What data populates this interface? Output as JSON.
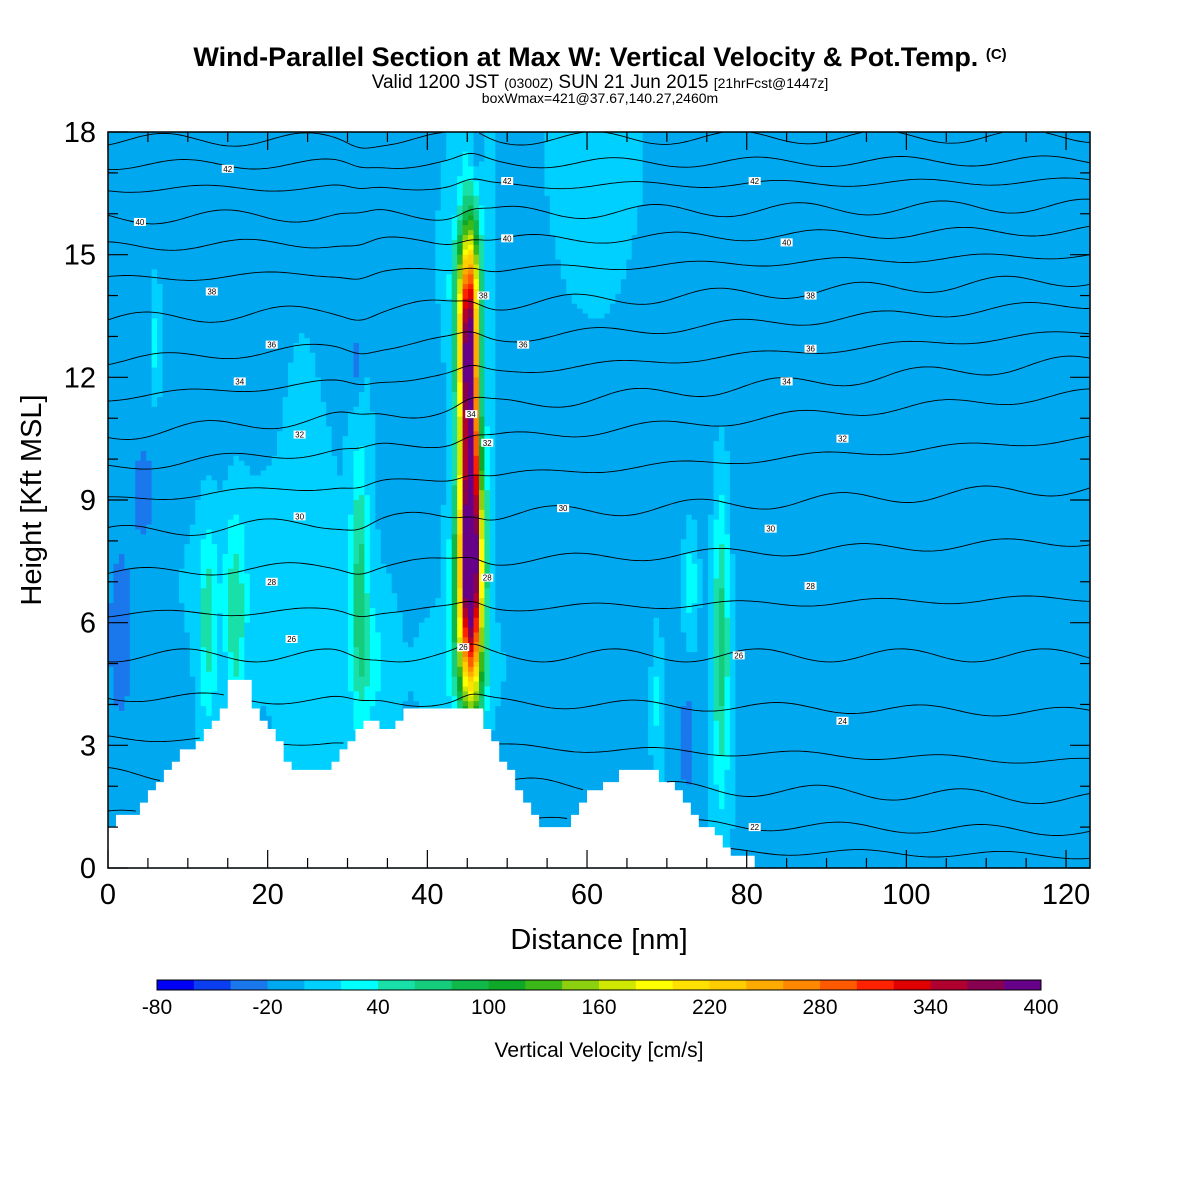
{
  "title": {
    "main": "Wind-Parallel Section at Max W: Vertical Velocity & Pot.Temp.",
    "copyright": "(C)",
    "valid_prefix": "Valid 1200 JST",
    "utc": "(0300Z)",
    "valid_date": "SUN 21 Jun 2015",
    "forecast": "[21hrFcst@1447z]",
    "boxinfo": "boxWmax=421@37.67,140.27,2460m"
  },
  "chart_data": {
    "type": "heatmap",
    "xlabel": "Distance [nm]",
    "ylabel": "Height [Kft MSL]",
    "xlim": [
      0,
      123
    ],
    "ylim": [
      0,
      18
    ],
    "x_ticks": [
      0,
      20,
      40,
      60,
      80,
      100,
      120
    ],
    "y_ticks": [
      0,
      3,
      6,
      9,
      12,
      15,
      18
    ],
    "colorbar": {
      "label": "Vertical Velocity [cm/s]",
      "range": [
        -80,
        400
      ],
      "step": 20,
      "tick_labels": [
        "-80",
        "-20",
        "40",
        "100",
        "160",
        "220",
        "280",
        "340",
        "400"
      ],
      "colors": [
        "#0000f5",
        "#0a3ef0",
        "#1b78ec",
        "#00a8f0",
        "#00d0ff",
        "#00ffff",
        "#18e0a8",
        "#14cc7c",
        "#10b84a",
        "#10a828",
        "#3cb818",
        "#8cd010",
        "#d0e800",
        "#ffff00",
        "#ffe000",
        "#ffcc00",
        "#ffaa00",
        "#ff8800",
        "#ff5a00",
        "#ff2200",
        "#e00000",
        "#b00030",
        "#880050",
        "#660088"
      ]
    },
    "background_w": 0,
    "terrain_profile_kft": {
      "x": [
        0,
        1,
        4,
        5,
        6,
        7,
        8,
        9,
        11,
        12,
        13,
        14,
        15,
        16,
        17,
        18,
        19,
        20,
        21,
        22,
        23,
        27,
        28,
        29,
        30,
        31,
        32,
        33,
        34,
        35,
        36,
        37,
        40,
        46,
        47,
        48,
        49,
        50,
        51,
        52,
        53,
        54,
        55,
        56,
        58,
        59,
        60,
        61,
        62,
        63,
        64,
        68,
        69,
        70,
        71,
        72,
        73,
        74,
        75,
        76,
        77,
        78,
        79,
        80,
        81,
        123
      ],
      "y": [
        1.0,
        1.3,
        1.6,
        1.9,
        2.1,
        2.4,
        2.6,
        2.9,
        3.1,
        3.4,
        3.6,
        3.9,
        4.6,
        4.6,
        4.6,
        3.9,
        3.6,
        3.4,
        3.1,
        2.6,
        2.4,
        2.4,
        2.6,
        2.9,
        3.1,
        3.4,
        3.6,
        3.6,
        3.4,
        3.4,
        3.6,
        3.9,
        3.9,
        3.9,
        3.4,
        3.1,
        2.6,
        2.4,
        1.9,
        1.6,
        1.3,
        1.0,
        1.0,
        1.0,
        1.3,
        1.6,
        1.9,
        1.9,
        2.1,
        2.1,
        2.4,
        2.4,
        2.1,
        2.1,
        1.9,
        1.6,
        1.3,
        1.0,
        1.0,
        0.8,
        0.5,
        0.3,
        0.3,
        0.3,
        0.0,
        0.0
      ]
    },
    "w_features": [
      {
        "x": 45.5,
        "y": 9.5,
        "sx": 1.0,
        "sy": 3.5,
        "w": 400
      },
      {
        "x": 45.0,
        "y": 12.8,
        "sx": 0.9,
        "sy": 1.4,
        "w": 180
      },
      {
        "x": 45.2,
        "y": 7.0,
        "sx": 1.2,
        "sy": 1.6,
        "w": 180
      },
      {
        "x": 45.0,
        "y": 14.5,
        "sx": 1.3,
        "sy": 1.0,
        "w": 70
      },
      {
        "x": 45.0,
        "y": 5.0,
        "sx": 2.8,
        "sy": 0.8,
        "w": 35
      },
      {
        "x": 46.6,
        "y": 11.5,
        "sx": 0.6,
        "sy": 2.3,
        "w": -90
      },
      {
        "x": 46.0,
        "y": 17.5,
        "sx": 0.6,
        "sy": 0.8,
        "w": -30
      },
      {
        "x": 31.5,
        "y": 7.0,
        "sx": 0.8,
        "sy": 2.2,
        "w": 70
      },
      {
        "x": 33.0,
        "y": 5.0,
        "sx": 1.6,
        "sy": 1.0,
        "w": 30
      },
      {
        "x": 76.8,
        "y": 5.5,
        "sx": 0.8,
        "sy": 2.6,
        "w": 80
      },
      {
        "x": 73.0,
        "y": 7.0,
        "sx": 0.7,
        "sy": 1.0,
        "w": 40
      },
      {
        "x": 68.8,
        "y": 4.2,
        "sx": 0.5,
        "sy": 1.2,
        "w": 30
      },
      {
        "x": 12.5,
        "y": 5.8,
        "sx": 0.8,
        "sy": 1.7,
        "w": 50
      },
      {
        "x": 16.0,
        "y": 6.0,
        "sx": 0.9,
        "sy": 1.8,
        "w": 50
      },
      {
        "x": 6.0,
        "y": 12.8,
        "sx": 0.5,
        "sy": 1.0,
        "w": 35
      },
      {
        "x": 14.0,
        "y": 7.2,
        "sx": 4.5,
        "sy": 1.5,
        "w": 15
      },
      {
        "x": 1.5,
        "y": 5.5,
        "sx": 1.8,
        "sy": 2.5,
        "w": -22
      },
      {
        "x": 4.5,
        "y": 9.2,
        "sx": 0.8,
        "sy": 0.8,
        "w": -25
      },
      {
        "x": 31.0,
        "y": 12.3,
        "sx": 0.5,
        "sy": 0.6,
        "w": -25
      },
      {
        "x": 72.5,
        "y": 3.0,
        "sx": 0.8,
        "sy": 0.9,
        "w": -30
      },
      {
        "x": 15.0,
        "y": 15.0,
        "sx": 2.0,
        "sy": 3.0,
        "w": -10
      },
      {
        "x": 30.0,
        "y": 15.5,
        "sx": 2.0,
        "sy": 2.5,
        "w": -10
      },
      {
        "x": 95.0,
        "y": 9.5,
        "sx": 26.0,
        "sy": 3.5,
        "w": -12
      },
      {
        "x": 97.0,
        "y": 4.0,
        "sx": 14.0,
        "sy": 3.0,
        "w": -12
      },
      {
        "x": 88.0,
        "y": 13.5,
        "sx": 10.0,
        "sy": 1.2,
        "w": -10
      },
      {
        "x": 55.0,
        "y": 6.5,
        "sx": 8.0,
        "sy": 4.0,
        "w": -10
      },
      {
        "x": 8.0,
        "y": 10.0,
        "sx": 6.0,
        "sy": 5.0,
        "w": -10
      },
      {
        "x": 25.0,
        "y": 7.0,
        "sx": 2.0,
        "sy": 2.5,
        "w": 10
      },
      {
        "x": 113.0,
        "y": 6.5,
        "sx": 4.0,
        "sy": 1.0,
        "w": 10
      },
      {
        "x": 61.0,
        "y": 15.5,
        "sx": 3.0,
        "sy": 2.0,
        "w": 8
      }
    ],
    "theta_lines": {
      "levels_c": [
        23,
        24,
        25,
        26,
        27,
        28,
        29,
        30,
        31,
        32,
        33,
        34,
        35,
        36,
        37,
        38,
        39,
        40,
        41,
        42,
        43
      ],
      "height_at_x0_kft": [
        0.6,
        1.3,
        2.3,
        3.2,
        4.2,
        5.2,
        6.2,
        7.2,
        8.2,
        9.0,
        9.8,
        10.6,
        11.5,
        12.4,
        13.4,
        14.4,
        15.2,
        15.9,
        16.6,
        17.2,
        17.8
      ],
      "height_at_x123_kft": [
        0.3,
        0.9,
        1.7,
        2.6,
        3.8,
        5.2,
        6.6,
        8.0,
        9.3,
        10.5,
        11.6,
        12.4,
        13.1,
        13.8,
        14.4,
        15.0,
        15.6,
        16.2,
        16.8,
        17.3,
        17.9
      ]
    },
    "theta_labels": [
      {
        "text": "42",
        "x": 15,
        "y": 17.1
      },
      {
        "text": "40",
        "x": 4,
        "y": 15.8
      },
      {
        "text": "38",
        "x": 13,
        "y": 14.1
      },
      {
        "text": "36",
        "x": 20.5,
        "y": 12.8
      },
      {
        "text": "34",
        "x": 16.5,
        "y": 11.9
      },
      {
        "text": "32",
        "x": 24,
        "y": 10.6
      },
      {
        "text": "30",
        "x": 24,
        "y": 8.6
      },
      {
        "text": "28",
        "x": 20.5,
        "y": 7.0
      },
      {
        "text": "26",
        "x": 23,
        "y": 5.6
      },
      {
        "text": "42",
        "x": 50,
        "y": 16.8
      },
      {
        "text": "40",
        "x": 50,
        "y": 15.4
      },
      {
        "text": "38",
        "x": 47,
        "y": 14.0
      },
      {
        "text": "36",
        "x": 52,
        "y": 12.8
      },
      {
        "text": "34",
        "x": 45.5,
        "y": 11.1
      },
      {
        "text": "32",
        "x": 47.5,
        "y": 10.4
      },
      {
        "text": "30",
        "x": 57,
        "y": 8.8
      },
      {
        "text": "28",
        "x": 47.5,
        "y": 7.1
      },
      {
        "text": "26",
        "x": 44.5,
        "y": 5.4
      },
      {
        "text": "42",
        "x": 81,
        "y": 16.8
      },
      {
        "text": "40",
        "x": 85,
        "y": 15.3
      },
      {
        "text": "38",
        "x": 88,
        "y": 14.0
      },
      {
        "text": "36",
        "x": 88,
        "y": 12.7
      },
      {
        "text": "34",
        "x": 85,
        "y": 11.9
      },
      {
        "text": "32",
        "x": 92,
        "y": 10.5
      },
      {
        "text": "30",
        "x": 83,
        "y": 8.3
      },
      {
        "text": "28",
        "x": 88,
        "y": 6.9
      },
      {
        "text": "26",
        "x": 79,
        "y": 5.2
      },
      {
        "text": "24",
        "x": 92,
        "y": 3.6
      },
      {
        "text": "22",
        "x": 81,
        "y": 1.0
      }
    ]
  }
}
